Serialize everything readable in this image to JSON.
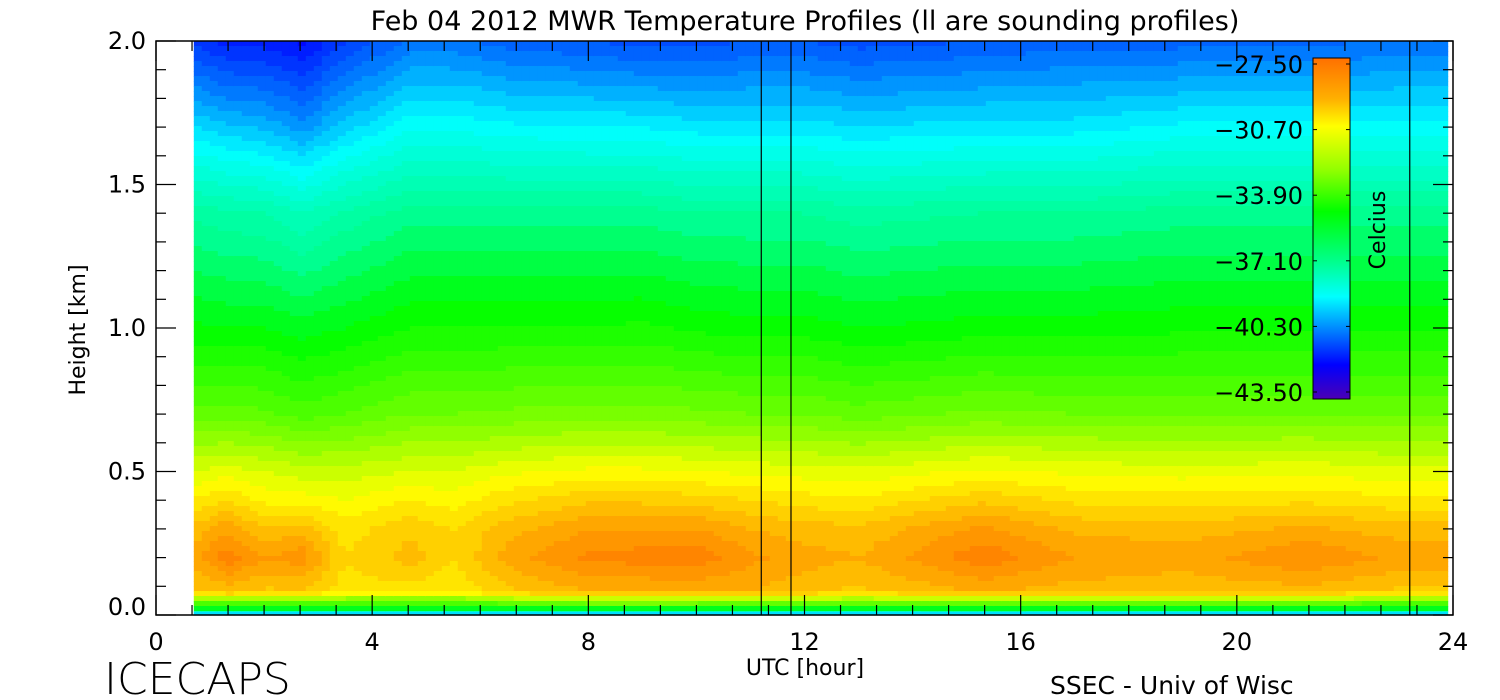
{
  "chart_data": {
    "type": "heatmap",
    "title": "Feb 04 2012 MWR Temperature Profiles (ll are sounding profiles)",
    "xlabel": "UTC [hour]",
    "ylabel": "Height [km]",
    "xlim": [
      0,
      24
    ],
    "ylim": [
      0,
      2.0
    ],
    "x_ticks": [
      0,
      4,
      8,
      12,
      16,
      20,
      24
    ],
    "x_tick_labels": [
      "0",
      "4",
      "8",
      "12",
      "16",
      "20",
      "24"
    ],
    "y_ticks": [
      0,
      0.5,
      1.0,
      1.5,
      2.0
    ],
    "y_tick_labels": [
      "0.0",
      "0.5",
      "1.0",
      "1.5",
      "2.0"
    ],
    "sounding_times": [
      11.2,
      11.75,
      23.2
    ],
    "colorbar": {
      "label": "Celcius",
      "range": [
        -43.5,
        -27.5
      ],
      "ticks": [
        "-27.50",
        "-30.70",
        "-33.90",
        "-37.10",
        "-40.30",
        "-43.50"
      ],
      "colors": [
        "#ff7000",
        "#ffb000",
        "#ffff00",
        "#90ff00",
        "#00ff00",
        "#00ff90",
        "#00ffff",
        "#0080ff",
        "#0000ff",
        "#4b00b4"
      ]
    },
    "times": [
      0.7,
      1.3,
      2.0,
      2.7,
      3.5,
      4.7,
      5.5,
      6.5,
      8.0,
      9.0,
      10.0,
      11.0,
      12.0,
      13.0,
      15.3,
      17.0,
      19.0,
      21.3,
      23.0,
      23.9
    ],
    "heights": [
      0,
      0.03,
      0.08,
      0.2,
      0.3,
      0.4,
      0.5,
      0.7,
      1.0,
      1.4,
      1.7,
      2.0
    ],
    "values": [
      [
        -38,
        -34,
        -29.5,
        -28.8,
        -29.3,
        -30.2,
        -31,
        -32.8,
        -34.5,
        -36.3,
        -39,
        -41.5
      ],
      [
        -38,
        -34,
        -29.3,
        -27.9,
        -28.7,
        -29.8,
        -30.8,
        -32.8,
        -34.6,
        -36.5,
        -39.3,
        -42
      ],
      [
        -38,
        -34,
        -29.5,
        -28.6,
        -29.4,
        -30.3,
        -31,
        -32.9,
        -34.6,
        -36.6,
        -39.5,
        -42
      ],
      [
        -38,
        -34,
        -29.5,
        -28.3,
        -29.2,
        -30.4,
        -31.2,
        -33.2,
        -34.8,
        -37,
        -40,
        -42.3
      ],
      [
        -38,
        -34,
        -30,
        -29.8,
        -30,
        -30.6,
        -31.2,
        -33,
        -34.6,
        -36.5,
        -39.2,
        -41.5
      ],
      [
        -38,
        -34,
        -30,
        -29.2,
        -29.5,
        -30.2,
        -31,
        -32.6,
        -34.2,
        -36,
        -38.3,
        -40.5
      ],
      [
        -38,
        -34,
        -30.2,
        -29.8,
        -29.8,
        -30.4,
        -31,
        -32.6,
        -34.2,
        -36,
        -38.3,
        -40.5
      ],
      [
        -38,
        -33.8,
        -29.5,
        -28.8,
        -29.2,
        -29.9,
        -30.7,
        -32.5,
        -34.2,
        -36,
        -38.5,
        -40.8
      ],
      [
        -38,
        -33.5,
        -29,
        -28.1,
        -28.6,
        -29.5,
        -30.5,
        -32.4,
        -34.2,
        -36,
        -38.6,
        -41
      ],
      [
        -38,
        -33.5,
        -29,
        -28.0,
        -28.6,
        -29.5,
        -30.5,
        -32.4,
        -34.1,
        -36,
        -38.6,
        -41.2
      ],
      [
        -38,
        -33.5,
        -29,
        -27.9,
        -28.6,
        -29.6,
        -30.6,
        -32.5,
        -34.3,
        -36.2,
        -38.8,
        -41.2
      ],
      [
        -38,
        -33.6,
        -29,
        -28.5,
        -29,
        -29.8,
        -30.7,
        -32.6,
        -34.4,
        -36.2,
        -38.8,
        -41
      ],
      [
        -38,
        -33.8,
        -29.3,
        -28.8,
        -29.2,
        -30,
        -30.8,
        -32.6,
        -34.4,
        -36.2,
        -38.8,
        -41
      ],
      [
        -38,
        -33.8,
        -29.5,
        -29,
        -29.3,
        -30.1,
        -30.9,
        -32.8,
        -34.6,
        -36.4,
        -39,
        -41.2
      ],
      [
        -38,
        -33.6,
        -29,
        -27.9,
        -28.5,
        -29.5,
        -30.5,
        -32.5,
        -34.4,
        -36.2,
        -38.8,
        -41
      ],
      [
        -38,
        -33.8,
        -29.2,
        -28.6,
        -29.1,
        -29.9,
        -30.7,
        -32.6,
        -34.4,
        -36.2,
        -38.8,
        -40.8
      ],
      [
        -38,
        -33.8,
        -29.3,
        -28.8,
        -29.2,
        -30,
        -30.8,
        -32.6,
        -34.3,
        -36,
        -38.5,
        -40.8
      ],
      [
        -38,
        -33.8,
        -29.2,
        -28.2,
        -28.9,
        -29.9,
        -30.7,
        -32.6,
        -34.3,
        -36,
        -38.5,
        -40.8
      ],
      [
        -38,
        -34,
        -29.5,
        -28.7,
        -29.2,
        -30.1,
        -30.9,
        -32.6,
        -34.3,
        -36,
        -38.5,
        -40.5
      ],
      [
        -38,
        -34,
        -29.5,
        -28.7,
        -29.2,
        -30.1,
        -30.9,
        -32.6,
        -34.3,
        -36,
        -38.5,
        -40.5
      ]
    ]
  },
  "footer": {
    "project": "ICECAPS",
    "credit": "SSEC - Univ of Wisc"
  }
}
